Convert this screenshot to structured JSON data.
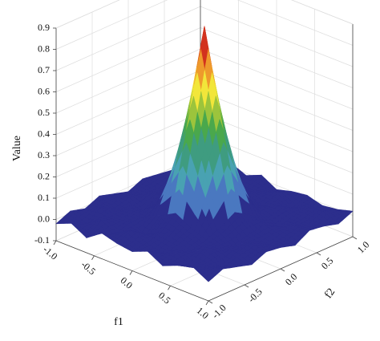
{
  "chart_data": {
    "type": "surface",
    "xlabel": "f1",
    "ylabel": "f2",
    "zlabel": "Value",
    "x": [
      -1,
      -0.8,
      -0.6,
      -0.4,
      -0.2,
      0,
      0.2,
      0.4,
      0.6,
      0.8,
      1
    ],
    "y": [
      -1,
      -0.8,
      -0.6,
      -0.4,
      -0.2,
      0,
      0.2,
      0.4,
      0.6,
      0.8,
      1
    ],
    "z": [
      [
        -0.02,
        0.01,
        -0.03,
        0.02,
        0.0,
        -0.01,
        0.02,
        -0.02,
        0.01,
        0.03,
        -0.01
      ],
      [
        0.01,
        -0.02,
        0.02,
        -0.01,
        0.03,
        0.0,
        -0.02,
        0.01,
        -0.03,
        0.0,
        0.02
      ],
      [
        -0.01,
        0.02,
        0.0,
        0.01,
        -0.02,
        0.02,
        0.01,
        -0.01,
        0.02,
        -0.02,
        0.0
      ],
      [
        0.02,
        -0.01,
        0.01,
        0.01,
        0.04,
        0.08,
        0.04,
        0.01,
        0.0,
        0.01,
        -0.02
      ],
      [
        0.0,
        0.01,
        -0.02,
        0.04,
        0.26,
        0.49,
        0.26,
        0.04,
        -0.01,
        0.02,
        0.01
      ],
      [
        -0.02,
        0.0,
        0.02,
        0.08,
        0.49,
        0.9,
        0.49,
        0.08,
        0.01,
        -0.01,
        0.0
      ],
      [
        0.01,
        -0.01,
        0.0,
        0.04,
        0.26,
        0.49,
        0.26,
        0.04,
        0.02,
        0.0,
        -0.02
      ],
      [
        0.0,
        0.02,
        -0.01,
        0.01,
        0.04,
        0.08,
        0.04,
        0.01,
        -0.02,
        0.01,
        0.02
      ],
      [
        -0.01,
        0.0,
        0.01,
        -0.02,
        0.01,
        0.02,
        -0.01,
        0.02,
        0.0,
        -0.01,
        0.01
      ],
      [
        0.02,
        -0.02,
        0.0,
        0.01,
        -0.01,
        0.0,
        0.02,
        -0.02,
        0.01,
        0.02,
        -0.01
      ],
      [
        -0.01,
        0.01,
        0.02,
        -0.01,
        0.02,
        -0.02,
        0.0,
        0.01,
        -0.01,
        0.0,
        0.02
      ]
    ],
    "xlim": [
      -1,
      1
    ],
    "ylim": [
      -1,
      1
    ],
    "zlim": [
      -0.1,
      0.9
    ],
    "xticks": [
      {
        "value": -1,
        "label": "-1.0"
      },
      -0.5,
      {
        "value": 0,
        "label": "0.0"
      },
      0.5,
      {
        "value": 1,
        "label": "1.0"
      }
    ],
    "yticks": [
      {
        "value": -1,
        "label": "-1.0"
      },
      -0.5,
      {
        "value": 0,
        "label": "0.0"
      },
      0.5,
      {
        "value": 1,
        "label": "1.0"
      }
    ],
    "zticks": [
      -0.1,
      {
        "value": 0,
        "label": "0.0"
      },
      0.1,
      0.2,
      0.3,
      0.4,
      0.5,
      0.6,
      0.7,
      0.8,
      0.9
    ],
    "colors": [
      "#2c2e8c",
      "#2c2e8c",
      "#4a78c0",
      "#49a2b2",
      "#3f9c80",
      "#4aa84c",
      "#9cc43c",
      "#f2e63a",
      "#ee9a2c",
      "#d2321e"
    ],
    "grid": true
  }
}
